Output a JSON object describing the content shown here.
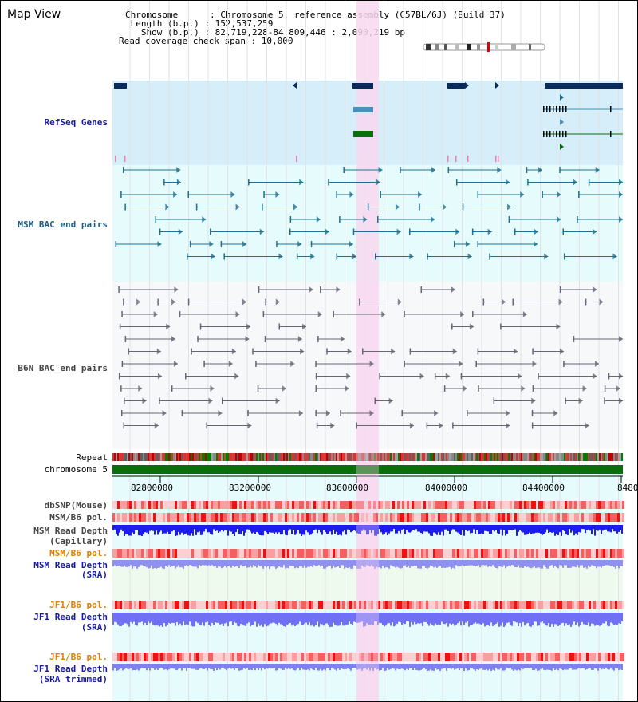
{
  "header": {
    "title": "Map View",
    "info_lines": [
      "Chromosome      : Chromosome 5, reference assembly (C57BL/6J) (Build 37)",
      " Length (b.p.) : 152,537,259",
      "   Show (b.p.) : 82,719,228-84,809,446 : 2,090,219 bp",
      "Read coverage check span : 10,000"
    ]
  },
  "tracks": {
    "refseq": "RefSeq Genes",
    "msm_bac": "MSM BAC end pairs",
    "b6n_bac": "B6N BAC end pairs",
    "repeat": "Repeat",
    "chromosome": "chromosome 5",
    "dbsnp": "dbSNP(Mouse)",
    "msm_b6_pol": "MSM/B6 pol.",
    "msm_depth_cap_1": "MSM Read Depth",
    "msm_depth_cap_2": "(Capillary)",
    "msm_b6_pol2": "MSM/B6 pol.",
    "msm_depth_sra_1": "MSM Read Depth",
    "msm_depth_sra_2": "(SRA)",
    "jf1_b6_pol": "JF1/B6 pol.",
    "jf1_depth_sra_1": "JF1 Read Depth",
    "jf1_depth_sra_2": "(SRA)",
    "jf1_b6_pol2": "JF1/B6 pol.",
    "jf1_depth_trim_1": "JF1 Read Depth",
    "jf1_depth_trim_2": "(SRA trimmed)"
  },
  "axis": {
    "ticks": [
      "82800000",
      "83200000",
      "83600000",
      "84000000",
      "84400000",
      "8480"
    ]
  },
  "colors": {
    "refseq_bg": "#d6eefa",
    "msm_bg": "#e6fbfb",
    "b6n_bg": "#f6f8fa",
    "highlight": "#f8d8f0",
    "chrom": "#0a6e0a",
    "gene_dark": "#0a2a5a",
    "pol_red": "#f01010",
    "depth_blue": "#2020f0",
    "depth_light": "#8080f0"
  }
}
